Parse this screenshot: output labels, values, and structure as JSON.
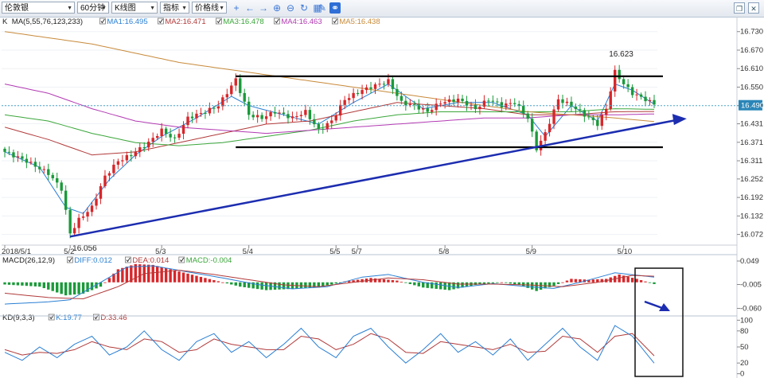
{
  "toolbar": {
    "symbol": "伦敦银",
    "period": "60分钟",
    "chart_type": "K线图",
    "indicator": "指标",
    "price_line": "价格线"
  },
  "legends": {
    "main": {
      "label": "K",
      "ma_label": "MA(5,55,76,123,233)",
      "items": [
        {
          "text": "MA1:16.495",
          "color": "#2a7fd4"
        },
        {
          "text": "MA2:16.471",
          "color": "#b23a3a"
        },
        {
          "text": "MA3:16.478",
          "color": "#3aa63a"
        },
        {
          "text": "MA4:16.463",
          "color": "#b23ab2"
        },
        {
          "text": "MA5:16.438",
          "color": "#c88a3a"
        }
      ]
    },
    "macd": {
      "label": "MACD(26,12,9)",
      "items": [
        {
          "text": "DIFF:0.012",
          "color": "#2a7fd4"
        },
        {
          "text": "DEA:0.014",
          "color": "#b23a3a"
        },
        {
          "text": "MACD:-0.004",
          "color": "#3aa63a"
        }
      ]
    },
    "kd": {
      "label": "KD(9,3,3)",
      "items": [
        {
          "text": "K:19.77",
          "color": "#2a7fd4"
        },
        {
          "text": "D:33.46",
          "color": "#b23a3a"
        }
      ]
    }
  },
  "chart_data": {
    "type": "candlestick",
    "y_ticks": [
      "16.730",
      "16.670",
      "16.610",
      "16.550",
      "16.490",
      "16.431",
      "16.371",
      "16.311",
      "16.252",
      "16.192",
      "16.132",
      "16.072"
    ],
    "ylim": [
      16.04,
      16.75
    ],
    "x_labels": [
      {
        "label": "2018/5/1",
        "index": 0
      },
      {
        "label": "5/2",
        "index": 15
      },
      {
        "label": "5/3",
        "index": 36
      },
      {
        "label": "5/4",
        "index": 56
      },
      {
        "label": "5/5",
        "index": 76
      },
      {
        "label": "5/7",
        "index": 81
      },
      {
        "label": "5/8",
        "index": 101
      },
      {
        "label": "5/9",
        "index": 121
      },
      {
        "label": "5/10",
        "index": 142
      }
    ],
    "current_price": {
      "label": "16.490",
      "value": 16.49
    },
    "annotations": [
      {
        "text": "16.623",
        "index": 139,
        "value": 16.623
      },
      {
        "text": "16.056",
        "index": 15,
        "value": 16.056
      }
    ],
    "channel": {
      "top": 16.585,
      "bottom": 16.355,
      "start_index": 53,
      "end_index": 151
    },
    "trendline": {
      "from": {
        "index": 15,
        "value": 16.065
      },
      "to": {
        "index": 155,
        "value": 16.445
      }
    },
    "close_path": [
      [
        0,
        16.34
      ],
      [
        5,
        16.31
      ],
      [
        10,
        16.27
      ],
      [
        13,
        16.22
      ],
      [
        15,
        16.075
      ],
      [
        17,
        16.12
      ],
      [
        20,
        16.16
      ],
      [
        23,
        16.26
      ],
      [
        26,
        16.31
      ],
      [
        29,
        16.33
      ],
      [
        33,
        16.37
      ],
      [
        36,
        16.41
      ],
      [
        39,
        16.38
      ],
      [
        42,
        16.45
      ],
      [
        46,
        16.47
      ],
      [
        49,
        16.49
      ],
      [
        53,
        16.575
      ],
      [
        56,
        16.46
      ],
      [
        59,
        16.45
      ],
      [
        62,
        16.47
      ],
      [
        66,
        16.45
      ],
      [
        69,
        16.47
      ],
      [
        72,
        16.41
      ],
      [
        75,
        16.44
      ],
      [
        78,
        16.51
      ],
      [
        82,
        16.54
      ],
      [
        86,
        16.56
      ],
      [
        88,
        16.57
      ],
      [
        91,
        16.5
      ],
      [
        94,
        16.49
      ],
      [
        97,
        16.47
      ],
      [
        100,
        16.5
      ],
      [
        104,
        16.51
      ],
      [
        108,
        16.48
      ],
      [
        111,
        16.51
      ],
      [
        114,
        16.49
      ],
      [
        117,
        16.5
      ],
      [
        120,
        16.45
      ],
      [
        122,
        16.35
      ],
      [
        124,
        16.4
      ],
      [
        127,
        16.51
      ],
      [
        130,
        16.49
      ],
      [
        133,
        16.46
      ],
      [
        136,
        16.43
      ],
      [
        138,
        16.48
      ],
      [
        140,
        16.6
      ],
      [
        142,
        16.56
      ],
      [
        144,
        16.53
      ],
      [
        147,
        16.51
      ],
      [
        149,
        16.495
      ]
    ],
    "ma_paths": [
      {
        "name": "MA1",
        "color": "#2a7fd4",
        "points": [
          [
            0,
            16.34
          ],
          [
            8,
            16.29
          ],
          [
            14,
            16.16
          ],
          [
            18,
            16.14
          ],
          [
            24,
            16.25
          ],
          [
            30,
            16.33
          ],
          [
            36,
            16.39
          ],
          [
            44,
            16.45
          ],
          [
            52,
            16.52
          ],
          [
            56,
            16.49
          ],
          [
            64,
            16.46
          ],
          [
            72,
            16.43
          ],
          [
            80,
            16.5
          ],
          [
            88,
            16.56
          ],
          [
            96,
            16.48
          ],
          [
            104,
            16.5
          ],
          [
            112,
            16.5
          ],
          [
            120,
            16.46
          ],
          [
            124,
            16.39
          ],
          [
            130,
            16.49
          ],
          [
            136,
            16.44
          ],
          [
            140,
            16.56
          ],
          [
            144,
            16.54
          ],
          [
            149,
            16.495
          ]
        ]
      },
      {
        "name": "MA2",
        "color": "#b23a3a",
        "points": [
          [
            0,
            16.42
          ],
          [
            10,
            16.38
          ],
          [
            20,
            16.33
          ],
          [
            30,
            16.34
          ],
          [
            40,
            16.37
          ],
          [
            50,
            16.4
          ],
          [
            60,
            16.43
          ],
          [
            70,
            16.44
          ],
          [
            80,
            16.47
          ],
          [
            90,
            16.5
          ],
          [
            100,
            16.49
          ],
          [
            110,
            16.48
          ],
          [
            120,
            16.46
          ],
          [
            130,
            16.46
          ],
          [
            140,
            16.47
          ],
          [
            149,
            16.471
          ]
        ]
      },
      {
        "name": "MA3",
        "color": "#3aa63a",
        "points": [
          [
            0,
            16.46
          ],
          [
            10,
            16.44
          ],
          [
            20,
            16.4
          ],
          [
            30,
            16.37
          ],
          [
            40,
            16.36
          ],
          [
            50,
            16.37
          ],
          [
            60,
            16.39
          ],
          [
            70,
            16.41
          ],
          [
            80,
            16.44
          ],
          [
            90,
            16.46
          ],
          [
            100,
            16.47
          ],
          [
            110,
            16.47
          ],
          [
            120,
            16.47
          ],
          [
            130,
            16.47
          ],
          [
            140,
            16.48
          ],
          [
            149,
            16.478
          ]
        ]
      },
      {
        "name": "MA4",
        "color": "#b23ab2",
        "points": [
          [
            0,
            16.56
          ],
          [
            10,
            16.53
          ],
          [
            20,
            16.48
          ],
          [
            30,
            16.44
          ],
          [
            40,
            16.42
          ],
          [
            50,
            16.41
          ],
          [
            60,
            16.4
          ],
          [
            70,
            16.41
          ],
          [
            80,
            16.42
          ],
          [
            90,
            16.43
          ],
          [
            100,
            16.44
          ],
          [
            110,
            16.45
          ],
          [
            120,
            16.45
          ],
          [
            130,
            16.46
          ],
          [
            140,
            16.46
          ],
          [
            149,
            16.463
          ]
        ]
      },
      {
        "name": "MA5",
        "color": "#c88a3a",
        "points": [
          [
            0,
            16.73
          ],
          [
            10,
            16.71
          ],
          [
            20,
            16.69
          ],
          [
            30,
            16.66
          ],
          [
            40,
            16.63
          ],
          [
            50,
            16.61
          ],
          [
            60,
            16.59
          ],
          [
            70,
            16.57
          ],
          [
            80,
            16.55
          ],
          [
            90,
            16.53
          ],
          [
            100,
            16.51
          ],
          [
            110,
            16.49
          ],
          [
            120,
            16.47
          ],
          [
            130,
            16.46
          ],
          [
            140,
            16.45
          ],
          [
            149,
            16.438
          ]
        ]
      }
    ],
    "macd": {
      "y_ticks": [
        "0.049",
        "-0.005",
        "-0.060"
      ],
      "ylim": [
        -0.07,
        0.06
      ],
      "hist_path": [
        [
          0,
          -0.005
        ],
        [
          8,
          -0.01
        ],
        [
          14,
          -0.03
        ],
        [
          18,
          -0.026
        ],
        [
          22,
          -0.01
        ],
        [
          26,
          0.03
        ],
        [
          30,
          0.042
        ],
        [
          34,
          0.04
        ],
        [
          38,
          0.03
        ],
        [
          42,
          0.02
        ],
        [
          46,
          0.01
        ],
        [
          50,
          0.0
        ],
        [
          54,
          -0.01
        ],
        [
          60,
          -0.018
        ],
        [
          66,
          -0.015
        ],
        [
          72,
          -0.012
        ],
        [
          78,
          0.002
        ],
        [
          84,
          0.01
        ],
        [
          90,
          0.004
        ],
        [
          96,
          -0.012
        ],
        [
          102,
          -0.018
        ],
        [
          108,
          -0.006
        ],
        [
          114,
          0.0
        ],
        [
          118,
          -0.006
        ],
        [
          122,
          -0.02
        ],
        [
          126,
          -0.008
        ],
        [
          130,
          0.008
        ],
        [
          134,
          0.006
        ],
        [
          138,
          0.008
        ],
        [
          141,
          0.018
        ],
        [
          145,
          0.008
        ],
        [
          149,
          -0.004
        ]
      ],
      "diff_path": [
        [
          0,
          -0.05
        ],
        [
          10,
          -0.045
        ],
        [
          15,
          -0.04
        ],
        [
          22,
          0.0
        ],
        [
          28,
          0.035
        ],
        [
          34,
          0.038
        ],
        [
          42,
          0.024
        ],
        [
          50,
          0.01
        ],
        [
          58,
          -0.005
        ],
        [
          66,
          -0.015
        ],
        [
          74,
          -0.01
        ],
        [
          82,
          0.012
        ],
        [
          88,
          0.018
        ],
        [
          96,
          0.0
        ],
        [
          104,
          -0.012
        ],
        [
          112,
          -0.003
        ],
        [
          120,
          -0.01
        ],
        [
          126,
          -0.014
        ],
        [
          132,
          0.0
        ],
        [
          140,
          0.022
        ],
        [
          149,
          0.012
        ]
      ],
      "dea_path": [
        [
          0,
          -0.025
        ],
        [
          10,
          -0.035
        ],
        [
          18,
          -0.038
        ],
        [
          26,
          -0.01
        ],
        [
          32,
          0.02
        ],
        [
          40,
          0.028
        ],
        [
          48,
          0.018
        ],
        [
          56,
          0.006
        ],
        [
          64,
          -0.006
        ],
        [
          72,
          -0.01
        ],
        [
          80,
          0.0
        ],
        [
          88,
          0.01
        ],
        [
          96,
          0.006
        ],
        [
          104,
          -0.004
        ],
        [
          112,
          -0.004
        ],
        [
          120,
          -0.006
        ],
        [
          128,
          -0.01
        ],
        [
          136,
          0.0
        ],
        [
          144,
          0.016
        ],
        [
          149,
          0.014
        ]
      ]
    },
    "kd": {
      "y_ticks": [
        "100",
        "80",
        "50",
        "20",
        "0"
      ],
      "ylim": [
        -5,
        105
      ],
      "k_path": [
        [
          0,
          40
        ],
        [
          4,
          25
        ],
        [
          8,
          50
        ],
        [
          12,
          30
        ],
        [
          16,
          55
        ],
        [
          20,
          70
        ],
        [
          24,
          35
        ],
        [
          28,
          50
        ],
        [
          32,
          80
        ],
        [
          36,
          45
        ],
        [
          40,
          25
        ],
        [
          44,
          60
        ],
        [
          48,
          75
        ],
        [
          52,
          40
        ],
        [
          56,
          60
        ],
        [
          60,
          30
        ],
        [
          64,
          55
        ],
        [
          68,
          85
        ],
        [
          72,
          50
        ],
        [
          76,
          30
        ],
        [
          80,
          70
        ],
        [
          84,
          85
        ],
        [
          88,
          50
        ],
        [
          92,
          20
        ],
        [
          96,
          45
        ],
        [
          100,
          75
        ],
        [
          104,
          40
        ],
        [
          108,
          60
        ],
        [
          112,
          35
        ],
        [
          116,
          65
        ],
        [
          120,
          25
        ],
        [
          124,
          55
        ],
        [
          128,
          85
        ],
        [
          132,
          50
        ],
        [
          136,
          25
        ],
        [
          140,
          90
        ],
        [
          144,
          70
        ],
        [
          149,
          19.77
        ]
      ],
      "d_path": [
        [
          0,
          45
        ],
        [
          4,
          35
        ],
        [
          8,
          40
        ],
        [
          12,
          38
        ],
        [
          16,
          45
        ],
        [
          20,
          60
        ],
        [
          24,
          50
        ],
        [
          28,
          45
        ],
        [
          32,
          65
        ],
        [
          36,
          60
        ],
        [
          40,
          40
        ],
        [
          44,
          45
        ],
        [
          48,
          65
        ],
        [
          52,
          55
        ],
        [
          56,
          50
        ],
        [
          60,
          45
        ],
        [
          64,
          45
        ],
        [
          68,
          70
        ],
        [
          72,
          65
        ],
        [
          76,
          45
        ],
        [
          80,
          55
        ],
        [
          84,
          75
        ],
        [
          88,
          65
        ],
        [
          92,
          40
        ],
        [
          96,
          38
        ],
        [
          100,
          60
        ],
        [
          104,
          55
        ],
        [
          108,
          50
        ],
        [
          112,
          45
        ],
        [
          116,
          55
        ],
        [
          120,
          40
        ],
        [
          124,
          42
        ],
        [
          128,
          70
        ],
        [
          132,
          65
        ],
        [
          136,
          40
        ],
        [
          140,
          70
        ],
        [
          144,
          75
        ],
        [
          149,
          33.46
        ]
      ]
    }
  }
}
